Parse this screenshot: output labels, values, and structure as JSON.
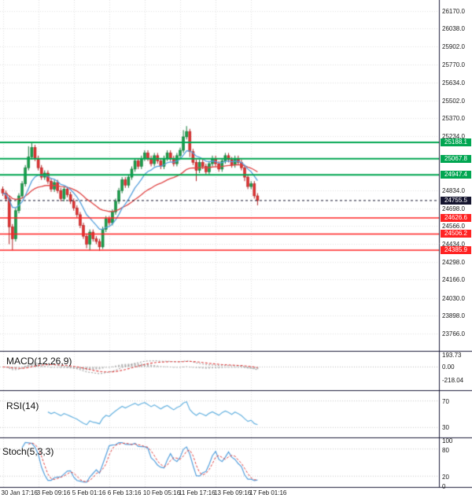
{
  "colors": {
    "background": "#ffffff",
    "grid": "#e2e2e2",
    "bull": "#1b9e4b",
    "bull_border": "#157a3a",
    "bear": "#e03232",
    "bear_border": "#b02525",
    "ma_fast": "#55a0dd",
    "ma_slow": "#e04444",
    "resistance": "#00a651",
    "support": "#ff2222",
    "last_price_bg": "#15152f",
    "separator": "#1a1a38",
    "macd_hist": "#b4b4b4",
    "macd_line": "#9a9a9a",
    "macd_signal": "#e04444",
    "rsi_line": "#66b2e0",
    "stoch_k": "#55a0dd",
    "stoch_d": "#e04444",
    "axis_text": "#1a1a1a"
  },
  "chart_data": [
    {
      "type": "candlestick",
      "title": "",
      "timeframe_labels": [
        "30 Jan 17:16",
        "3 Feb 09:16",
        "5 Feb 01:16",
        "6 Feb 13:16",
        "10 Feb 05:16",
        "11 Feb 17:16",
        "13 Feb 09:16",
        "17 Feb 01:16"
      ],
      "x_label_indices": [
        0,
        11,
        22,
        33,
        44,
        55,
        66,
        77
      ],
      "ylim": [
        23635,
        26250
      ],
      "y_ticks": [
        26170.0,
        26038.0,
        25902.0,
        25770.0,
        25634.0,
        25502.0,
        25370.0,
        25234.0,
        24834.0,
        24698.0,
        24566.0,
        24434.0,
        24298.0,
        24166.0,
        24030.0,
        23898.0,
        23766.0
      ],
      "y_tick_labels": [
        "26170.0",
        "26038.0",
        "25902.0",
        "25770.0",
        "25634.0",
        "25502.0",
        "25370.0",
        "25234.0",
        "24834.0",
        "24698.0",
        "24566.0",
        "24434.0",
        "24298.0",
        "24166.0",
        "24030.0",
        "23898.0",
        "23766.0"
      ],
      "open": [
        24840,
        24810,
        24770,
        24560,
        24470,
        24680,
        24790,
        24880,
        25000,
        25080,
        25150,
        25070,
        25000,
        24930,
        24960,
        24900,
        24840,
        24890,
        24830,
        24770,
        24840,
        24800,
        24750,
        24700,
        24650,
        24570,
        24490,
        24430,
        24520,
        24470,
        24450,
        24410,
        24540,
        24620,
        24590,
        24670,
        24750,
        24830,
        24910,
        24870,
        24930,
        24990,
        25050,
        25010,
        25070,
        25110,
        25070,
        25030,
        25090,
        25050,
        25010,
        25070,
        25110,
        25070,
        25030,
        25090,
        25130,
        25230,
        25270,
        25120,
        25040,
        24980,
        25040,
        25010,
        24970,
        25030,
        25070,
        25030,
        24990,
        25050,
        25090,
        25060,
        25020,
        25070,
        25040,
        25000,
        24930,
        24860,
        24880,
        24790
      ],
      "high": [
        24860,
        24830,
        24790,
        24580,
        24700,
        24810,
        24900,
        25020,
        25160,
        25190,
        25170,
        25090,
        25020,
        24980,
        24980,
        24920,
        24910,
        24910,
        24850,
        24860,
        24860,
        24820,
        24770,
        24720,
        24670,
        24590,
        24510,
        24540,
        24540,
        24490,
        24470,
        24560,
        24640,
        24640,
        24690,
        24770,
        24850,
        24930,
        24930,
        24950,
        25010,
        25070,
        25070,
        25090,
        25130,
        25130,
        25090,
        25110,
        25110,
        25070,
        25090,
        25130,
        25130,
        25090,
        25110,
        25150,
        25280,
        25310,
        25290,
        25140,
        25060,
        25060,
        25060,
        25030,
        25050,
        25090,
        25090,
        25050,
        25070,
        25110,
        25110,
        25080,
        25090,
        25090,
        25060,
        25020,
        24950,
        24900,
        24900,
        24810
      ],
      "low": [
        24790,
        24750,
        24430,
        24385,
        24450,
        24660,
        24770,
        24860,
        24980,
        25060,
        25050,
        24980,
        24910,
        24910,
        24880,
        24820,
        24820,
        24810,
        24750,
        24750,
        24780,
        24730,
        24680,
        24630,
        24550,
        24470,
        24400,
        24385,
        24450,
        24430,
        24380,
        24395,
        24520,
        24570,
        24570,
        24650,
        24730,
        24810,
        24850,
        24850,
        24910,
        24970,
        24990,
        24990,
        25050,
        25050,
        25010,
        25010,
        25030,
        24990,
        24990,
        25050,
        25050,
        25010,
        25010,
        25070,
        25110,
        25210,
        25080,
        25020,
        24900,
        24960,
        24990,
        24950,
        24950,
        25010,
        25010,
        24970,
        24970,
        25030,
        25040,
        25000,
        25000,
        25020,
        24980,
        24900,
        24840,
        24840,
        24770,
        24720
      ],
      "close": [
        24810,
        24770,
        24560,
        24470,
        24680,
        24790,
        24880,
        25000,
        25080,
        25150,
        25070,
        25000,
        24930,
        24960,
        24900,
        24840,
        24890,
        24830,
        24770,
        24840,
        24800,
        24750,
        24700,
        24650,
        24570,
        24490,
        24430,
        24520,
        24470,
        24450,
        24410,
        24540,
        24620,
        24590,
        24670,
        24750,
        24830,
        24910,
        24870,
        24930,
        24990,
        25050,
        25010,
        25070,
        25110,
        25070,
        25030,
        25090,
        25050,
        25010,
        25070,
        25110,
        25070,
        25030,
        25090,
        25130,
        25230,
        25270,
        25120,
        25040,
        24980,
        25040,
        25010,
        24970,
        25030,
        25070,
        25030,
        24990,
        25050,
        25090,
        25060,
        25020,
        25070,
        25040,
        25000,
        24930,
        24860,
        24880,
        24790,
        24755.5
      ],
      "overlays": [
        {
          "name": "ma-fast",
          "method": "ema",
          "period": 10
        },
        {
          "name": "ma-slow",
          "method": "ema",
          "period": 30
        }
      ],
      "levels": {
        "resistance": [
          25188.1,
          25067.8,
          24947.4
        ],
        "resistance_labels": [
          "25188.1",
          "25067.8",
          "24947.4"
        ],
        "support": [
          24626.6,
          24506.2,
          24385.9
        ],
        "support_labels": [
          "24626.6",
          "24506.2",
          "24385.9"
        ],
        "last_price": 24755.5,
        "last_price_label": "24755.5"
      }
    },
    {
      "type": "macd",
      "label": "MACD(12,26,9)",
      "params": [
        12,
        26,
        9
      ],
      "ylim": [
        -380,
        250
      ],
      "y_ticks": [
        193.73,
        0,
        -218.04
      ],
      "y_tick_labels": [
        "193.73",
        "0.00",
        "-218.04"
      ]
    },
    {
      "type": "rsi",
      "label": "RSI(14)",
      "period": 14,
      "ylim": [
        15,
        85
      ],
      "grid": [
        70,
        30
      ],
      "y_ticks": [
        70,
        30
      ],
      "y_tick_labels": [
        "70",
        "30"
      ]
    },
    {
      "type": "stoch",
      "label": "Stoch(5,3,3)",
      "params": [
        5,
        3,
        3
      ],
      "ylim": [
        -4,
        104
      ],
      "grid": [
        80,
        20
      ],
      "y_ticks": [
        100,
        80,
        20,
        0
      ],
      "y_tick_labels": [
        "100",
        "80",
        "20",
        "0"
      ]
    }
  ]
}
